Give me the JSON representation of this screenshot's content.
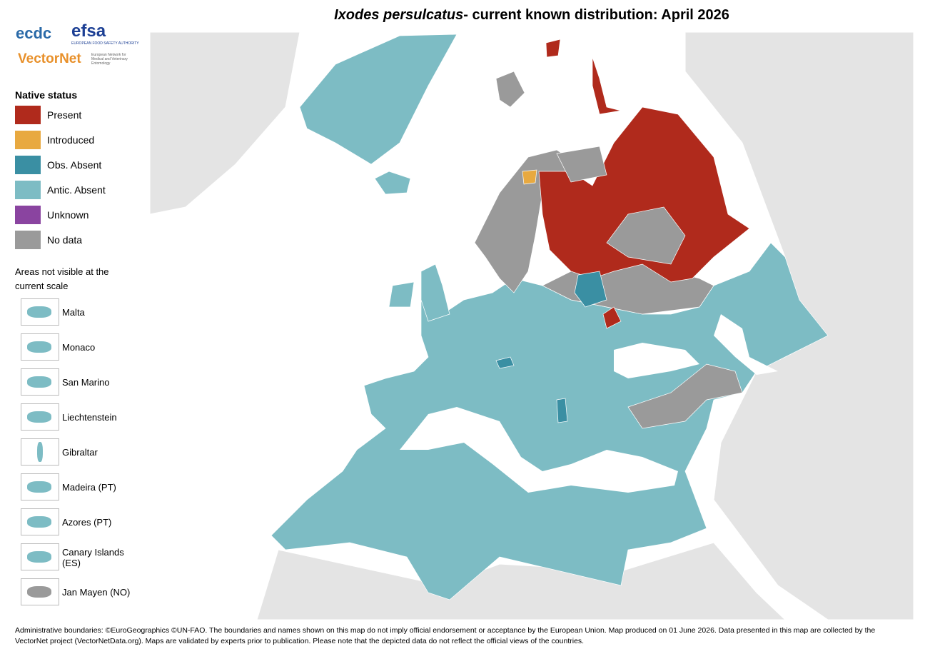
{
  "title": {
    "species": "Ixodes persulcatus",
    "rest": "- current known distribution: April 2026"
  },
  "logos": {
    "ecdc": "ecdc",
    "efsa": "efsa",
    "efsa_sub": "EUROPEAN FOOD SAFETY AUTHORITY",
    "vectornet": "VectorNet",
    "vectornet_sub": "European Network for Medical and Veterinary Entomology"
  },
  "legend": {
    "title": "Native status",
    "items": [
      {
        "name": "Present",
        "color": "#b02a1c"
      },
      {
        "name": "Introduced",
        "color": "#e8a940"
      },
      {
        "name": "Obs. Absent",
        "color": "#3a8fa3"
      },
      {
        "name": "Antic. Absent",
        "color": "#7dbcc4"
      },
      {
        "name": "Unknown",
        "color": "#8a44a0"
      },
      {
        "name": "No data",
        "color": "#9a9a9a"
      }
    ]
  },
  "insets": {
    "title": "Areas not visible at the current scale",
    "items": [
      "Malta",
      "Monaco",
      "San Marino",
      "Liechtenstein",
      "Gibraltar",
      "Madeira (PT)",
      "Azores (PT)",
      "Canary Islands (ES)",
      "Jan Mayen (NO)"
    ]
  },
  "footer": {
    "lines": [
      "Administrative boundaries: ©EuroGeographics ©UN-FAO. The boundaries and names shown on this map do not imply official endorsement or acceptance by the European Union. Map produced on 01 June 2026. Data presented in this map are collected by the",
      "VectorNet project (VectorNetData.org). Maps are validated by experts prior to publication. Please note that the depicted data do not reflect the official views of the countries."
    ]
  }
}
